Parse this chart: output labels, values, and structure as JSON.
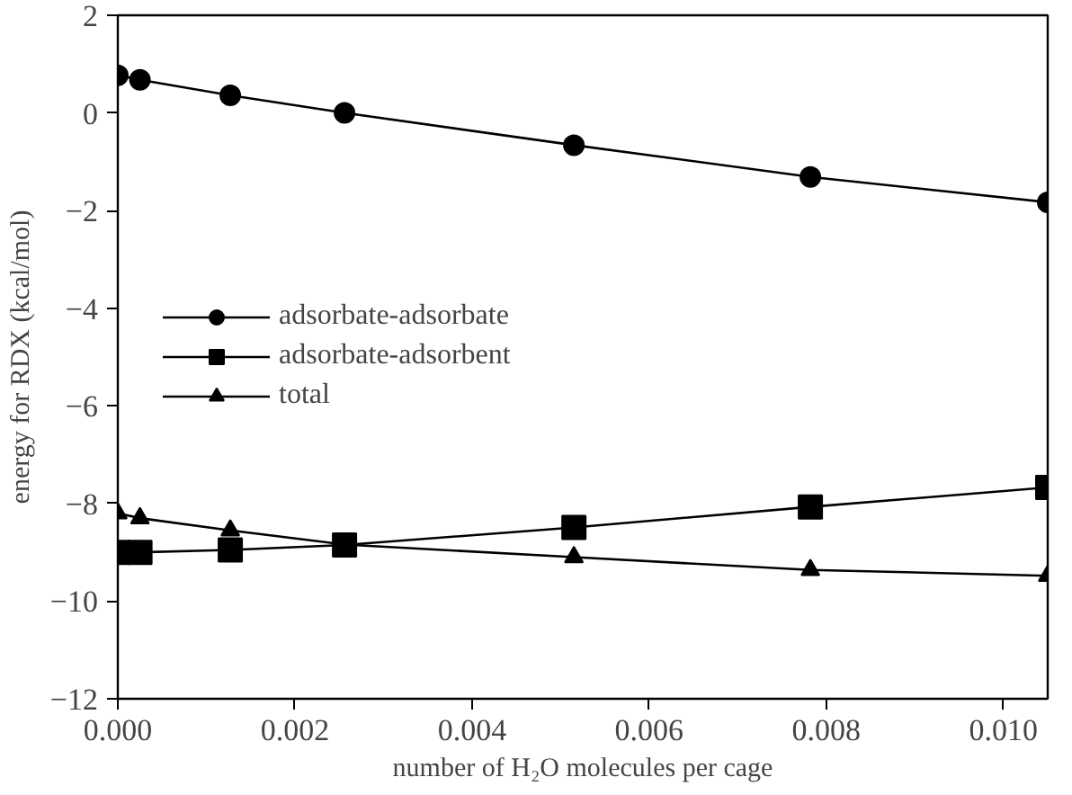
{
  "chart_data": {
    "type": "line",
    "xlabel": "number of H₂O molecules per cage",
    "ylabel": "energy for RDX (kcal/mol)",
    "x": [
      0,
      0.00025,
      0.00127,
      0.00256,
      0.00515,
      0.00782,
      0.0105
    ],
    "series": [
      {
        "name": "adsorbate-adsorbate",
        "color": "#000000",
        "marker": "circle",
        "values": [
          0.77,
          0.68,
          0.36,
          0,
          -0.66,
          -1.31,
          -1.83
        ]
      },
      {
        "name": "adsorbate-adsorbent",
        "color": "#000000",
        "marker": "square",
        "values": [
          -9.0,
          -9.0,
          -8.95,
          -8.85,
          -8.49,
          -8.07,
          -7.67
        ]
      },
      {
        "name": "total",
        "color": "#000000",
        "marker": "triangle",
        "values": [
          -8.2,
          -8.3,
          -8.55,
          -8.84,
          -9.1,
          -9.36,
          -9.48
        ]
      }
    ],
    "xlim": [
      0,
      0.0105
    ],
    "xticks": [
      {
        "value": 0,
        "label": "0.000"
      },
      {
        "value": 0.002,
        "label": "0.002"
      },
      {
        "value": 0.004,
        "label": "0.004"
      },
      {
        "value": 0.006,
        "label": "0.006"
      },
      {
        "value": 0.008,
        "label": "0.008"
      },
      {
        "value": 0.01,
        "label": "0.010"
      }
    ],
    "ylim": [
      -12,
      2
    ],
    "yticks": [
      {
        "value": -12,
        "label": "−12"
      },
      {
        "value": -10,
        "label": "−10"
      },
      {
        "value": -8,
        "label": "−8"
      },
      {
        "value": -6,
        "label": "−6"
      },
      {
        "value": -4,
        "label": "−4"
      },
      {
        "value": -2,
        "label": "−2"
      },
      0,
      2
    ],
    "grid": false,
    "legend": "left",
    "line_style": "solid"
  }
}
